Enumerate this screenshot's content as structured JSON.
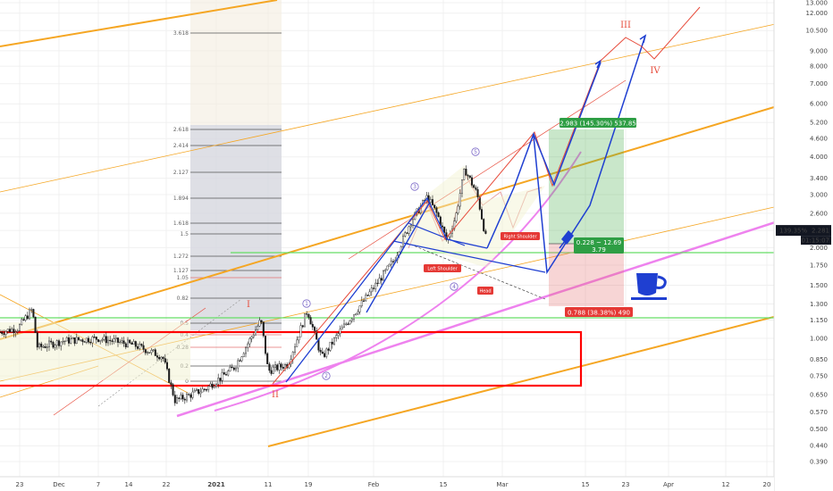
{
  "colors": {
    "background": "#ffffff",
    "candle_up": "#1a1a1a",
    "candle_down": "#1a1a1a",
    "channel": "#f5a623",
    "trend_pink": "#ee82ee",
    "wave_red": "#e74c3c",
    "wave_blue": "#1f3fd1",
    "fib_fill": "#9ea7c4",
    "support_green": "#66dd66",
    "profit_green": "#4caf50",
    "loss_red": "#e57373",
    "box_red": "#ff0000",
    "coffee": "#1f3fd1"
  },
  "chart_data": {
    "type": "candlestick",
    "y_scale": "log",
    "ylim": [
      0.36,
      13.0
    ],
    "y_ticks": [
      "13.000",
      "12.000",
      "10.500",
      "9.000",
      "8.000",
      "7.000",
      "6.000",
      "5.200",
      "4.600",
      "4.000",
      "3.400",
      "3.000",
      "2.600",
      "2.281",
      "2.000",
      "1.750",
      "1.500",
      "1.300",
      "1.150",
      "1.000",
      "0.850",
      "0.750",
      "0.650",
      "0.570",
      "0.500",
      "0.440",
      "0.390"
    ],
    "x_ticks": [
      "23",
      "Dec",
      "7",
      "14",
      "22",
      "2021",
      "11",
      "19",
      "Feb",
      "15",
      "Mar",
      "15",
      "23",
      "Apr",
      "12",
      "20"
    ],
    "current_price": {
      "percent": "139.35%",
      "value": "2.281",
      "countdown": "01:15:07"
    },
    "fib_levels": [
      "3.618",
      "2.618",
      "2.414",
      "2.127",
      "1.894",
      "1.618",
      "1.5",
      "1.272",
      "1.127",
      "1.05",
      "0.82",
      "0.5",
      "0.4",
      "0.28",
      "0.2",
      "0"
    ],
    "wave_labels": [
      "I",
      "II",
      "III",
      "IV",
      "1",
      "2",
      "3",
      "4",
      "5"
    ],
    "pattern_labels": [
      "Left Shoulder",
      "Head",
      "Right Shoulder"
    ],
    "position": {
      "target_label": "2.983 (145.30%) 537.85",
      "entry_label": "0.228 ~ 12.69",
      "ratio_label": "3.79",
      "stop_label": "0.788 (38.38%) 490"
    }
  }
}
